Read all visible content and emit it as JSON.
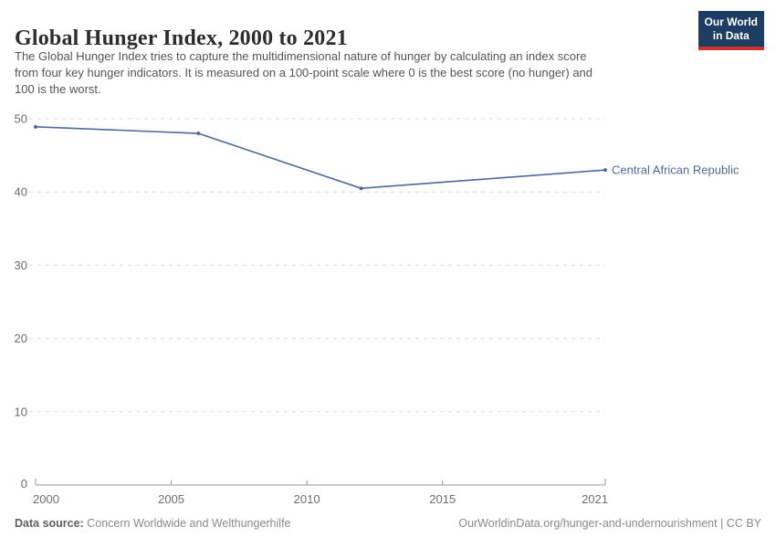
{
  "header": {
    "title": "Global Hunger Index, 2000 to 2021",
    "subtitle_lines": [
      "The Global Hunger Index tries to capture the multidimensional nature of hunger by calculating an index score",
      "from four key hunger indicators. It is measured on a 100-point scale where 0 is the best score (no hunger) and",
      "100 is the worst."
    ],
    "logo": {
      "line1": "Our World",
      "line2": "in Data",
      "bg_color": "#1d3d63",
      "bar_color": "#cc342b"
    }
  },
  "chart_data": {
    "type": "line",
    "title": "Global Hunger Index, 2000 to 2021",
    "xlim": [
      2000,
      2021
    ],
    "ylim": [
      0,
      50
    ],
    "x_ticks": [
      2000,
      2005,
      2010,
      2015,
      2021
    ],
    "y_ticks": [
      0,
      10,
      20,
      30,
      40,
      50
    ],
    "grid": "horizontal-dashed",
    "legend_position": "end-of-line-label",
    "series": [
      {
        "name": "Central African Republic",
        "color": "#4c6a9c",
        "points": [
          {
            "x": 2000,
            "y": 48.9
          },
          {
            "x": 2006,
            "y": 48.0
          },
          {
            "x": 2012,
            "y": 40.5
          },
          {
            "x": 2021,
            "y": 43.0
          }
        ]
      }
    ],
    "colors": {
      "grid": "#dcdcdc",
      "axis": "#999999",
      "tick_label": "#6e6e6e"
    }
  },
  "footer": {
    "datasource_label": "Data source:",
    "datasource_value": "Concern Worldwide and Welthungerhilfe",
    "link": "OurWorldinData.org/hunger-and-undernourishment | CC BY"
  }
}
